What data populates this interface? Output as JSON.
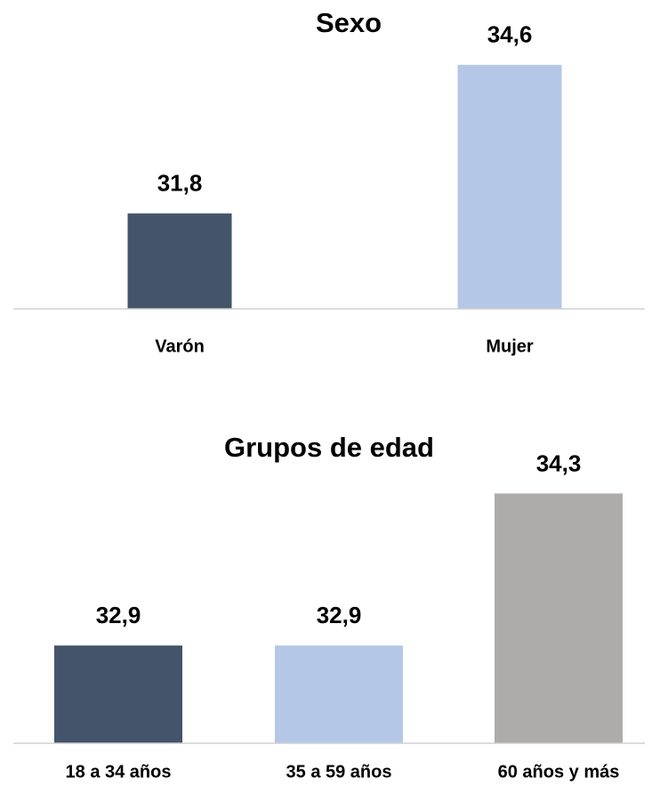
{
  "chart_data": [
    {
      "type": "bar",
      "title": "Sexo",
      "categories": [
        "Varón",
        "Mujer"
      ],
      "values": [
        31.8,
        34.6
      ],
      "value_labels": [
        "31,8",
        "34,6"
      ],
      "colors": [
        "#44546a",
        "#b4c7e7"
      ],
      "ylim": [
        30,
        35
      ]
    },
    {
      "type": "bar",
      "title": "Grupos de edad",
      "categories": [
        "18 a 34 años",
        "35 a 59 años",
        "60 años y más"
      ],
      "values": [
        32.9,
        32.9,
        34.3
      ],
      "value_labels": [
        "32,9",
        "32,9",
        "34,3"
      ],
      "colors": [
        "#44546a",
        "#b4c7e7",
        "#afabab"
      ],
      "ylim": [
        32,
        34.5
      ]
    }
  ]
}
